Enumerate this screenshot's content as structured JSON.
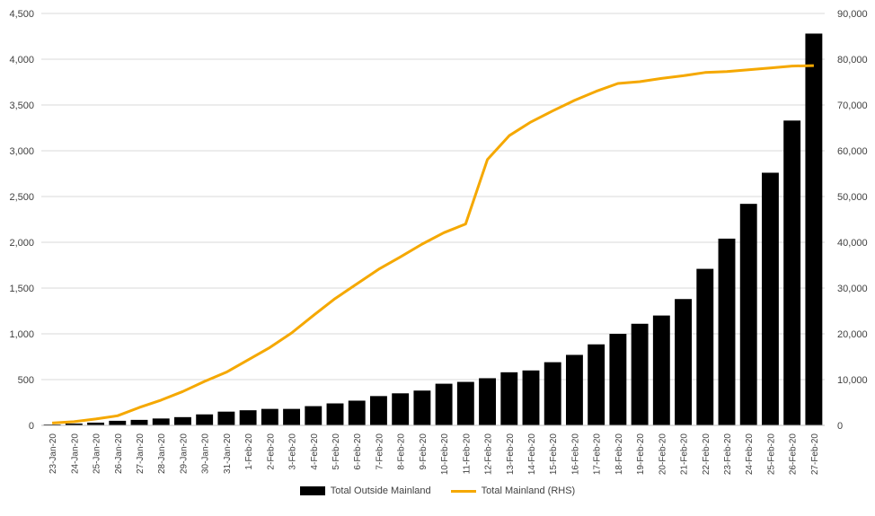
{
  "chart_data": {
    "type": "bar",
    "categories": [
      "23-Jan-20",
      "24-Jan-20",
      "25-Jan-20",
      "26-Jan-20",
      "27-Jan-20",
      "28-Jan-20",
      "29-Jan-20",
      "30-Jan-20",
      "31-Jan-20",
      "1-Feb-20",
      "2-Feb-20",
      "3-Feb-20",
      "4-Feb-20",
      "5-Feb-20",
      "6-Feb-20",
      "7-Feb-20",
      "8-Feb-20",
      "9-Feb-20",
      "10-Feb-20",
      "11-Feb-20",
      "12-Feb-20",
      "13-Feb-20",
      "14-Feb-20",
      "15-Feb-20",
      "16-Feb-20",
      "17-Feb-20",
      "18-Feb-20",
      "19-Feb-20",
      "20-Feb-20",
      "21-Feb-20",
      "22-Feb-20",
      "23-Feb-20",
      "24-Feb-20",
      "25-Feb-20",
      "26-Feb-20",
      "27-Feb-20"
    ],
    "series": [
      {
        "name": "Total Outside Mainland",
        "type": "bar",
        "axis": "left",
        "color": "#000000",
        "values": [
          10,
          20,
          30,
          50,
          60,
          75,
          90,
          120,
          150,
          165,
          180,
          180,
          210,
          240,
          270,
          320,
          350,
          380,
          455,
          475,
          515,
          580,
          600,
          690,
          770,
          885,
          1000,
          1110,
          1200,
          1380,
          1710,
          2040,
          2420,
          2760,
          3330,
          4280
        ]
      },
      {
        "name": "Total Mainland (RHS)",
        "type": "line",
        "axis": "right",
        "color": "#F5A800",
        "values": [
          500,
          800,
          1400,
          2100,
          3900,
          5500,
          7400,
          9600,
          11600,
          14300,
          17000,
          20200,
          24000,
          27700,
          30900,
          34100,
          36800,
          39600,
          42100,
          44000,
          58100,
          63300,
          66300,
          68700,
          71000,
          73000,
          74700,
          75100,
          75800,
          76400,
          77100,
          77300,
          77700,
          78100,
          78500,
          78600
        ]
      }
    ],
    "title": "",
    "xlabel": "",
    "ylabel": "",
    "ylim": [
      0,
      4500
    ],
    "y2lim": [
      0,
      90000
    ],
    "yticks": [
      "0",
      "500",
      "1,000",
      "1,500",
      "2,000",
      "2,500",
      "3,000",
      "3,500",
      "4,000",
      "4,500"
    ],
    "y2ticks": [
      "0",
      "10,000",
      "20,000",
      "30,000",
      "40,000",
      "50,000",
      "60,000",
      "70,000",
      "80,000",
      "90,000"
    ],
    "grid": true,
    "legend": "bottom"
  },
  "legend": {
    "bar_label": "Total Outside Mainland",
    "line_label": "Total Mainland (RHS)"
  }
}
